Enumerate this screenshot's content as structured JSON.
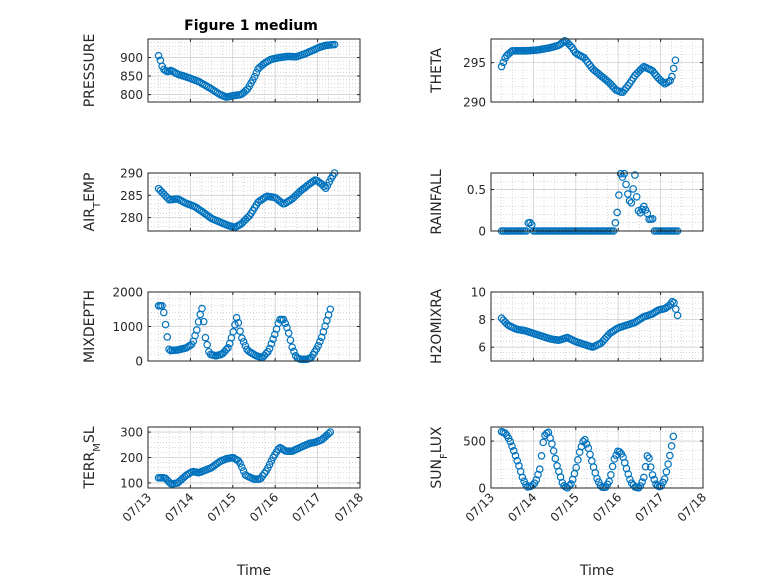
{
  "figure_title": "Figure 1 medium",
  "x_tick_labels": [
    "07/13",
    "07/14",
    "07/15",
    "07/16",
    "07/17",
    "07/18"
  ],
  "x_axis_label": "Time",
  "marker_color": "#0072BD",
  "chart_data": [
    {
      "type": "scatter",
      "title": "Figure 1 medium",
      "ylabel": "PRESSURE",
      "ylim": [
        780,
        950
      ],
      "yticks": [
        800,
        850,
        900
      ],
      "ytick_labels": [
        "800",
        "850",
        "900"
      ],
      "xlim": [
        "07/13",
        "07/18"
      ],
      "grid": true,
      "keypoints": [
        [
          0.25,
          905
        ],
        [
          0.3,
          890
        ],
        [
          0.35,
          870
        ],
        [
          0.45,
          862
        ],
        [
          0.55,
          865
        ],
        [
          0.7,
          855
        ],
        [
          0.9,
          848
        ],
        [
          1.2,
          835
        ],
        [
          1.5,
          815
        ],
        [
          1.7,
          800
        ],
        [
          1.85,
          793
        ],
        [
          2.0,
          797
        ],
        [
          2.2,
          800
        ],
        [
          2.35,
          815
        ],
        [
          2.5,
          845
        ],
        [
          2.6,
          870
        ],
        [
          2.75,
          885
        ],
        [
          2.9,
          895
        ],
        [
          3.1,
          900
        ],
        [
          3.3,
          903
        ],
        [
          3.5,
          902
        ],
        [
          3.7,
          910
        ],
        [
          3.9,
          920
        ],
        [
          4.05,
          928
        ],
        [
          4.2,
          933
        ],
        [
          4.4,
          935
        ]
      ],
      "n_points": 100
    },
    {
      "type": "scatter",
      "ylabel": "THETA",
      "ylim": [
        290,
        298
      ],
      "yticks": [
        290,
        295
      ],
      "ytick_labels": [
        "290",
        "295"
      ],
      "xlim": [
        "07/13",
        "07/18"
      ],
      "grid": true,
      "keypoints": [
        [
          0.25,
          294.5
        ],
        [
          0.35,
          295.8
        ],
        [
          0.5,
          296.5
        ],
        [
          0.8,
          296.5
        ],
        [
          1.1,
          296.6
        ],
        [
          1.4,
          296.9
        ],
        [
          1.6,
          297.2
        ],
        [
          1.75,
          297.8
        ],
        [
          1.9,
          297.0
        ],
        [
          2.0,
          296.2
        ],
        [
          2.2,
          295.6
        ],
        [
          2.4,
          294.2
        ],
        [
          2.6,
          293.3
        ],
        [
          2.8,
          292.4
        ],
        [
          2.95,
          291.5
        ],
        [
          3.1,
          291.2
        ],
        [
          3.25,
          292.2
        ],
        [
          3.4,
          293.4
        ],
        [
          3.6,
          294.5
        ],
        [
          3.8,
          294.0
        ],
        [
          3.95,
          293.0
        ],
        [
          4.1,
          292.3
        ],
        [
          4.25,
          292.8
        ],
        [
          4.35,
          295.3
        ]
      ],
      "n_points": 100
    },
    {
      "type": "scatter",
      "ylabel": "AIR_TEMP",
      "ylim": [
        277,
        290
      ],
      "yticks": [
        280,
        285,
        290
      ],
      "ytick_labels": [
        "280",
        "285",
        "290"
      ],
      "xlim": [
        "07/13",
        "07/18"
      ],
      "grid": true,
      "keypoints": [
        [
          0.25,
          286.5
        ],
        [
          0.35,
          285.5
        ],
        [
          0.5,
          284.0
        ],
        [
          0.7,
          284.2
        ],
        [
          0.9,
          283.2
        ],
        [
          1.1,
          282.5
        ],
        [
          1.3,
          281.2
        ],
        [
          1.5,
          279.8
        ],
        [
          1.7,
          279.0
        ],
        [
          1.9,
          278.2
        ],
        [
          2.05,
          277.8
        ],
        [
          2.2,
          278.6
        ],
        [
          2.4,
          280.5
        ],
        [
          2.6,
          283.5
        ],
        [
          2.8,
          284.8
        ],
        [
          3.0,
          284.5
        ],
        [
          3.2,
          283.0
        ],
        [
          3.4,
          284.2
        ],
        [
          3.6,
          286.0
        ],
        [
          3.8,
          287.5
        ],
        [
          3.95,
          288.5
        ],
        [
          4.1,
          287.5
        ],
        [
          4.2,
          286.5
        ],
        [
          4.3,
          288.5
        ],
        [
          4.4,
          290.0
        ]
      ],
      "n_points": 100
    },
    {
      "type": "scatter",
      "ylabel": "RAINFALL",
      "ylim": [
        0,
        0.7
      ],
      "yticks": [
        0,
        0.5
      ],
      "ytick_labels": [
        "0",
        "0.5"
      ],
      "xlim": [
        "07/13",
        "07/18"
      ],
      "grid": true,
      "keypoints": [
        [
          0.25,
          0
        ],
        [
          0.85,
          0
        ],
        [
          0.88,
          0.1
        ],
        [
          0.95,
          0.1
        ],
        [
          1.0,
          0
        ],
        [
          2.9,
          0
        ],
        [
          3.0,
          0.3
        ],
        [
          3.05,
          0.7
        ],
        [
          3.1,
          0.65
        ],
        [
          3.15,
          0.7
        ],
        [
          3.2,
          0.5
        ],
        [
          3.3,
          0.3
        ],
        [
          3.4,
          0.7
        ],
        [
          3.45,
          0.3
        ],
        [
          3.5,
          0.2
        ],
        [
          3.6,
          0.3
        ],
        [
          3.7,
          0.2
        ],
        [
          3.75,
          0.1
        ],
        [
          3.8,
          0.2
        ],
        [
          3.85,
          0
        ],
        [
          4.4,
          0
        ]
      ],
      "n_points": 100
    },
    {
      "type": "scatter",
      "ylabel": "MIXDEPTH",
      "ylim": [
        0,
        2000
      ],
      "yticks": [
        0,
        1000,
        2000
      ],
      "ytick_labels": [
        "0",
        "1000",
        "2000"
      ],
      "xlim": [
        "07/13",
        "07/18"
      ],
      "grid": true,
      "keypoints": [
        [
          0.25,
          1600
        ],
        [
          0.35,
          1600
        ],
        [
          0.42,
          1000
        ],
        [
          0.5,
          300
        ],
        [
          0.7,
          320
        ],
        [
          0.9,
          380
        ],
        [
          1.05,
          500
        ],
        [
          1.15,
          900
        ],
        [
          1.22,
          1300
        ],
        [
          1.28,
          1550
        ],
        [
          1.35,
          700
        ],
        [
          1.45,
          200
        ],
        [
          1.6,
          150
        ],
        [
          1.75,
          200
        ],
        [
          1.9,
          400
        ],
        [
          2.0,
          800
        ],
        [
          2.1,
          1300
        ],
        [
          2.2,
          700
        ],
        [
          2.35,
          300
        ],
        [
          2.55,
          150
        ],
        [
          2.7,
          100
        ],
        [
          2.85,
          300
        ],
        [
          3.0,
          800
        ],
        [
          3.1,
          1200
        ],
        [
          3.2,
          1200
        ],
        [
          3.3,
          900
        ],
        [
          3.4,
          400
        ],
        [
          3.5,
          100
        ],
        [
          3.6,
          50
        ],
        [
          3.75,
          50
        ],
        [
          3.85,
          100
        ],
        [
          4.0,
          400
        ],
        [
          4.1,
          700
        ],
        [
          4.2,
          1100
        ],
        [
          4.3,
          1500
        ]
      ],
      "n_points": 100
    },
    {
      "type": "scatter",
      "ylabel": "H2OMIXRA",
      "ylim": [
        5,
        10
      ],
      "yticks": [
        6,
        8,
        10
      ],
      "ytick_labels": [
        "6",
        "8",
        "10"
      ],
      "xlim": [
        "07/13",
        "07/18"
      ],
      "grid": true,
      "keypoints": [
        [
          0.25,
          8.1
        ],
        [
          0.4,
          7.6
        ],
        [
          0.6,
          7.3
        ],
        [
          0.8,
          7.2
        ],
        [
          1.0,
          7.0
        ],
        [
          1.2,
          6.8
        ],
        [
          1.4,
          6.6
        ],
        [
          1.6,
          6.5
        ],
        [
          1.8,
          6.7
        ],
        [
          2.0,
          6.4
        ],
        [
          2.2,
          6.2
        ],
        [
          2.4,
          6.0
        ],
        [
          2.6,
          6.3
        ],
        [
          2.8,
          7.0
        ],
        [
          3.0,
          7.4
        ],
        [
          3.2,
          7.6
        ],
        [
          3.4,
          7.8
        ],
        [
          3.6,
          8.2
        ],
        [
          3.8,
          8.4
        ],
        [
          3.95,
          8.7
        ],
        [
          4.1,
          8.8
        ],
        [
          4.2,
          9.0
        ],
        [
          4.3,
          9.4
        ],
        [
          4.4,
          8.3
        ]
      ],
      "n_points": 100
    },
    {
      "type": "scatter",
      "ylabel": "TERR_MSL",
      "ylim": [
        80,
        320
      ],
      "yticks": [
        100,
        200,
        300
      ],
      "ytick_labels": [
        "100",
        "200",
        "300"
      ],
      "xlim": [
        "07/13",
        "07/18"
      ],
      "grid": true,
      "keypoints": [
        [
          0.25,
          120
        ],
        [
          0.4,
          120
        ],
        [
          0.55,
          95
        ],
        [
          0.7,
          100
        ],
        [
          0.9,
          130
        ],
        [
          1.05,
          145
        ],
        [
          1.2,
          140
        ],
        [
          1.35,
          150
        ],
        [
          1.5,
          160
        ],
        [
          1.7,
          185
        ],
        [
          1.85,
          195
        ],
        [
          2.0,
          200
        ],
        [
          2.15,
          185
        ],
        [
          2.3,
          130
        ],
        [
          2.5,
          115
        ],
        [
          2.65,
          115
        ],
        [
          2.8,
          150
        ],
        [
          2.95,
          200
        ],
        [
          3.1,
          240
        ],
        [
          3.25,
          225
        ],
        [
          3.4,
          225
        ],
        [
          3.6,
          240
        ],
        [
          3.8,
          255
        ],
        [
          3.95,
          260
        ],
        [
          4.1,
          270
        ],
        [
          4.3,
          300
        ]
      ],
      "n_points": 100
    },
    {
      "type": "scatter",
      "ylabel": "SUN_FLUX",
      "ylim": [
        0,
        650
      ],
      "yticks": [
        0,
        500
      ],
      "ytick_labels": [
        "0",
        "500"
      ],
      "xlim": [
        "07/13",
        "07/18"
      ],
      "grid": true,
      "keypoints": [
        [
          0.25,
          600
        ],
        [
          0.35,
          580
        ],
        [
          0.45,
          500
        ],
        [
          0.55,
          380
        ],
        [
          0.65,
          250
        ],
        [
          0.75,
          100
        ],
        [
          0.85,
          10
        ],
        [
          0.95,
          20
        ],
        [
          1.05,
          60
        ],
        [
          1.15,
          200
        ],
        [
          1.25,
          550
        ],
        [
          1.35,
          600
        ],
        [
          1.45,
          450
        ],
        [
          1.55,
          250
        ],
        [
          1.7,
          30
        ],
        [
          1.8,
          0
        ],
        [
          1.9,
          50
        ],
        [
          2.0,
          200
        ],
        [
          2.1,
          400
        ],
        [
          2.2,
          530
        ],
        [
          2.3,
          420
        ],
        [
          2.4,
          250
        ],
        [
          2.5,
          100
        ],
        [
          2.6,
          10
        ],
        [
          2.7,
          5
        ],
        [
          2.8,
          80
        ],
        [
          2.9,
          300
        ],
        [
          3.0,
          400
        ],
        [
          3.1,
          350
        ],
        [
          3.2,
          200
        ],
        [
          3.3,
          60
        ],
        [
          3.4,
          10
        ],
        [
          3.5,
          0
        ],
        [
          3.6,
          100
        ],
        [
          3.7,
          380
        ],
        [
          3.8,
          150
        ],
        [
          3.9,
          30
        ],
        [
          4.0,
          10
        ],
        [
          4.1,
          100
        ],
        [
          4.2,
          300
        ],
        [
          4.3,
          550
        ]
      ],
      "n_points": 100
    }
  ]
}
